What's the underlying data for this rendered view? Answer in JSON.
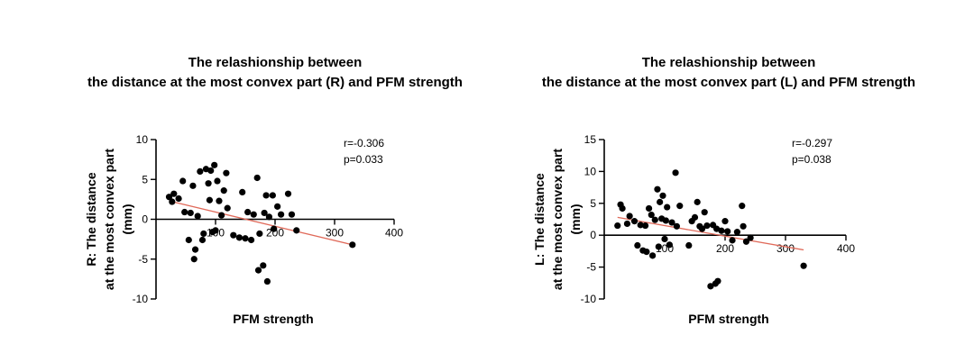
{
  "chart_data": [
    {
      "type": "scatter",
      "title": [
        "The relashionship between",
        "the distance at the most convex part (R) and PFM strength"
      ],
      "xlabel": "PFM strength",
      "ylabel": [
        "R: The distance",
        "at the most convex part",
        "(mm)"
      ],
      "xlim": [
        0,
        400
      ],
      "ylim": [
        -10,
        10
      ],
      "xticks": [
        100,
        200,
        300,
        400
      ],
      "xtick_labels": [
        "100",
        "200",
        "300",
        "400"
      ],
      "yticks": [
        10,
        5,
        0,
        -5,
        -10
      ],
      "ytick_labels": [
        "10",
        "5",
        "0",
        "-5",
        "-10"
      ],
      "annotation": [
        "r=-0.306",
        "p=0.033"
      ],
      "points": [
        [
          22,
          2.8
        ],
        [
          27,
          2.2
        ],
        [
          30,
          3.2
        ],
        [
          38,
          2.6
        ],
        [
          45,
          4.8
        ],
        [
          48,
          0.9
        ],
        [
          55,
          -2.6
        ],
        [
          58,
          0.8
        ],
        [
          62,
          4.2
        ],
        [
          64,
          -5.0
        ],
        [
          66,
          -3.8
        ],
        [
          70,
          0.4
        ],
        [
          74,
          6.0
        ],
        [
          78,
          -2.6
        ],
        [
          80,
          -1.8
        ],
        [
          84,
          6.3
        ],
        [
          88,
          4.5
        ],
        [
          90,
          2.4
        ],
        [
          92,
          6.1
        ],
        [
          95,
          -1.6
        ],
        [
          98,
          6.8
        ],
        [
          100,
          -1.4
        ],
        [
          103,
          4.8
        ],
        [
          106,
          2.3
        ],
        [
          110,
          0.5
        ],
        [
          114,
          3.6
        ],
        [
          118,
          5.8
        ],
        [
          120,
          1.4
        ],
        [
          130,
          -2.0
        ],
        [
          140,
          -2.3
        ],
        [
          145,
          3.4
        ],
        [
          150,
          -2.4
        ],
        [
          154,
          0.9
        ],
        [
          160,
          -2.6
        ],
        [
          164,
          0.6
        ],
        [
          170,
          5.2
        ],
        [
          172,
          -6.4
        ],
        [
          174,
          -1.8
        ],
        [
          180,
          -5.8
        ],
        [
          182,
          0.8
        ],
        [
          185,
          3.0
        ],
        [
          187,
          -7.8
        ],
        [
          190,
          0.3
        ],
        [
          196,
          3.0
        ],
        [
          198,
          -1.2
        ],
        [
          204,
          1.6
        ],
        [
          210,
          0.6
        ],
        [
          222,
          3.2
        ],
        [
          228,
          0.6
        ],
        [
          236,
          -1.4
        ],
        [
          330,
          -3.2
        ]
      ],
      "fit": {
        "x": [
          22,
          330
        ],
        "y": [
          2.3,
          -3.2
        ],
        "color": "#e06a5a"
      }
    },
    {
      "type": "scatter",
      "title": [
        "The relashionship between",
        "the distance at the most convex part (L) and PFM strength"
      ],
      "xlabel": "PFM strength",
      "ylabel": [
        "L: The distance",
        "at the most convex part",
        "(mm)"
      ],
      "xlim": [
        0,
        400
      ],
      "ylim": [
        -10,
        15
      ],
      "xticks": [
        100,
        200,
        300,
        400
      ],
      "xtick_labels": [
        "100",
        "200",
        "300",
        "400"
      ],
      "yticks": [
        15,
        10,
        5,
        0,
        -5,
        -10
      ],
      "ytick_labels": [
        "15",
        "10",
        "5",
        "0",
        "-5",
        "-10"
      ],
      "annotation": [
        "r=-0.297",
        "p=0.038"
      ],
      "points": [
        [
          22,
          1.5
        ],
        [
          27,
          4.8
        ],
        [
          30,
          4.2
        ],
        [
          38,
          1.8
        ],
        [
          42,
          3.0
        ],
        [
          50,
          2.2
        ],
        [
          55,
          -1.6
        ],
        [
          60,
          1.6
        ],
        [
          64,
          -2.4
        ],
        [
          68,
          1.5
        ],
        [
          70,
          -2.6
        ],
        [
          74,
          4.2
        ],
        [
          78,
          3.2
        ],
        [
          80,
          -3.2
        ],
        [
          84,
          2.4
        ],
        [
          88,
          7.2
        ],
        [
          90,
          -1.8
        ],
        [
          92,
          5.2
        ],
        [
          95,
          2.6
        ],
        [
          97,
          6.2
        ],
        [
          100,
          -0.6
        ],
        [
          102,
          2.3
        ],
        [
          104,
          4.4
        ],
        [
          108,
          -1.5
        ],
        [
          112,
          2.0
        ],
        [
          118,
          9.8
        ],
        [
          120,
          1.4
        ],
        [
          125,
          4.6
        ],
        [
          140,
          -1.6
        ],
        [
          145,
          2.2
        ],
        [
          150,
          2.8
        ],
        [
          154,
          5.2
        ],
        [
          158,
          1.4
        ],
        [
          162,
          1.0
        ],
        [
          166,
          3.6
        ],
        [
          170,
          1.5
        ],
        [
          176,
          -8.0
        ],
        [
          180,
          1.6
        ],
        [
          184,
          -7.6
        ],
        [
          186,
          1.0
        ],
        [
          188,
          -7.2
        ],
        [
          194,
          0.7
        ],
        [
          200,
          2.2
        ],
        [
          204,
          0.6
        ],
        [
          212,
          -0.8
        ],
        [
          220,
          0.5
        ],
        [
          228,
          4.6
        ],
        [
          230,
          1.4
        ],
        [
          235,
          -1.0
        ],
        [
          242,
          -0.4
        ],
        [
          330,
          -4.8
        ]
      ],
      "fit": {
        "x": [
          22,
          330
        ],
        "y": [
          2.8,
          -2.3
        ],
        "color": "#e06a5a"
      }
    }
  ]
}
